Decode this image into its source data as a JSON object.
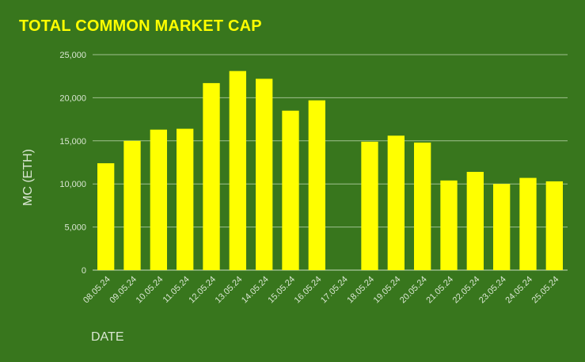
{
  "chart_data": {
    "type": "bar",
    "title": "TOTAL COMMON MARKET CAP",
    "xlabel": "DATE",
    "ylabel": "MC (ETH)",
    "categories": [
      "08.05.24",
      "09.05.24",
      "10.05.24",
      "11.05.24",
      "12.05.24",
      "13.05.24",
      "14.05.24",
      "15.05.24",
      "16.05.24",
      "17.05.24",
      "18.05.24",
      "19.05.24",
      "20.05.24",
      "21.05.24",
      "22.05.24",
      "23.05.24",
      "24.05.24",
      "25.05.24"
    ],
    "values": [
      12400,
      15000,
      16300,
      16400,
      21700,
      23100,
      22200,
      18500,
      19700,
      null,
      14900,
      15600,
      14800,
      10400,
      11400,
      10000,
      10700,
      10300
    ],
    "ylim": [
      0,
      25000
    ],
    "yticks": [
      0,
      5000,
      10000,
      15000,
      20000,
      25000
    ],
    "ytick_labels": [
      "0",
      "5,000",
      "10,000",
      "15,000",
      "20,000",
      "25,000"
    ],
    "grid": true,
    "legend": "none",
    "colors": {
      "background": "#38761d",
      "bar": "#ffff00",
      "title": "#ffff00",
      "grid": "#9fc08f",
      "axis_text": "#d9e6d2"
    }
  }
}
